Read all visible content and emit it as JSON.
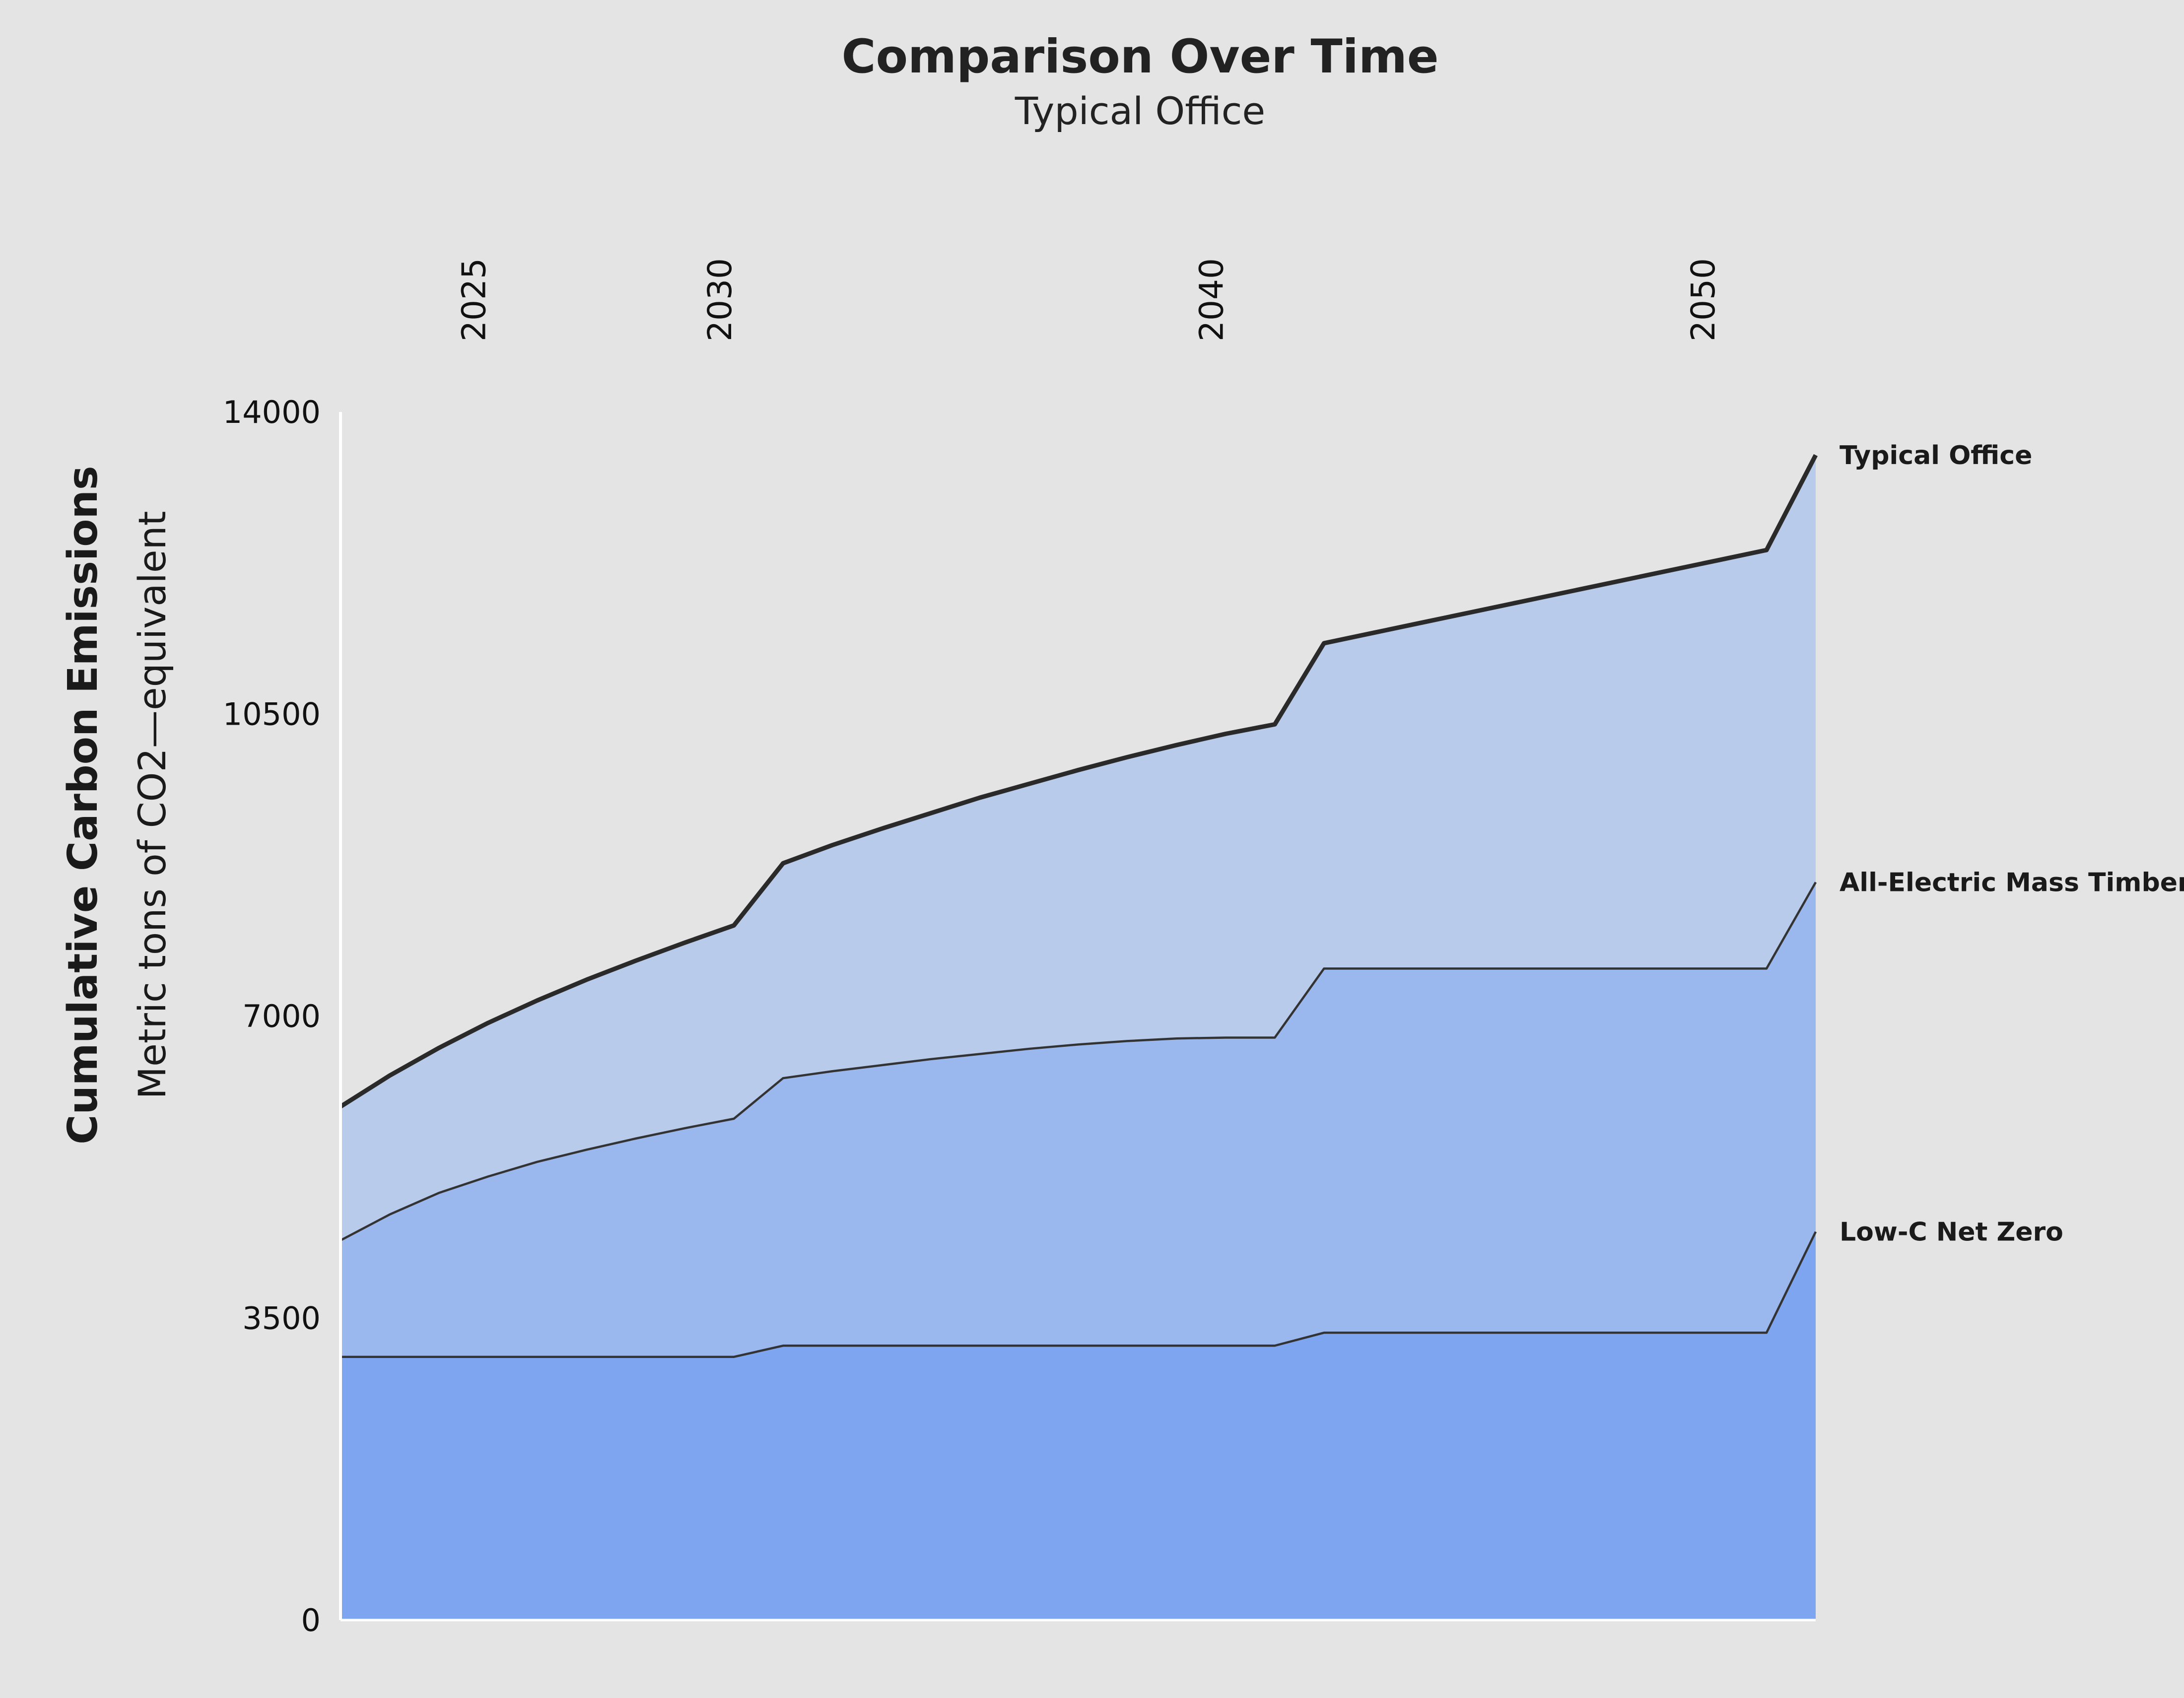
{
  "chart_data": {
    "type": "area",
    "title": "Comparison Over Time",
    "subtitle": "Typical Office",
    "ylabel": "Cumulative Carbon Emissions",
    "ylabel_sub": "Metric tons of CO2—equivalent",
    "xlabel": "",
    "ylim": [
      0,
      14000
    ],
    "yticks": [
      0,
      3500,
      7000,
      10500,
      14000
    ],
    "x_axis_position": "top",
    "xticks": [
      2025,
      2030,
      2040,
      2050
    ],
    "xlim": [
      2022.3,
      2052.3
    ],
    "grid": false,
    "series_labels_position": "right-end",
    "x": [
      2022.3,
      2023.3,
      2024.3,
      2025.3,
      2026.3,
      2027.3,
      2028.3,
      2029.3,
      2030.3,
      2031.3,
      2032.3,
      2033.3,
      2034.3,
      2035.3,
      2036.3,
      2037.3,
      2038.3,
      2039.3,
      2040.3,
      2041.3,
      2042.3,
      2043.3,
      2044.3,
      2045.3,
      2046.3,
      2047.3,
      2048.3,
      2049.3,
      2050.3,
      2051.3,
      2052.3
    ],
    "series": [
      {
        "name": "Low-C Net Zero",
        "color": "#7ea5f0",
        "values": [
          3050,
          3050,
          3050,
          3050,
          3050,
          3050,
          3050,
          3050,
          3050,
          3180,
          3180,
          3180,
          3180,
          3180,
          3180,
          3180,
          3180,
          3180,
          3180,
          3180,
          3330,
          3330,
          3330,
          3330,
          3330,
          3330,
          3330,
          3330,
          3330,
          3330,
          4500
        ]
      },
      {
        "name": "All-Electric Mass Timber",
        "color": "#9bb8ee",
        "values": [
          4400,
          4700,
          4950,
          5140,
          5310,
          5450,
          5580,
          5700,
          5810,
          6280,
          6360,
          6430,
          6500,
          6560,
          6620,
          6670,
          6710,
          6740,
          6750,
          6750,
          7550,
          7550,
          7550,
          7550,
          7550,
          7550,
          7550,
          7550,
          7550,
          7550,
          8550
        ]
      },
      {
        "name": "Typical Office",
        "color": "#b9cbea",
        "values": [
          5950,
          6310,
          6630,
          6920,
          7180,
          7420,
          7640,
          7850,
          8050,
          8770,
          8980,
          9170,
          9350,
          9530,
          9690,
          9850,
          10000,
          10140,
          10270,
          10380,
          11320,
          11440,
          11560,
          11680,
          11800,
          11920,
          12040,
          12160,
          12280,
          12400,
          13500
        ]
      }
    ]
  }
}
